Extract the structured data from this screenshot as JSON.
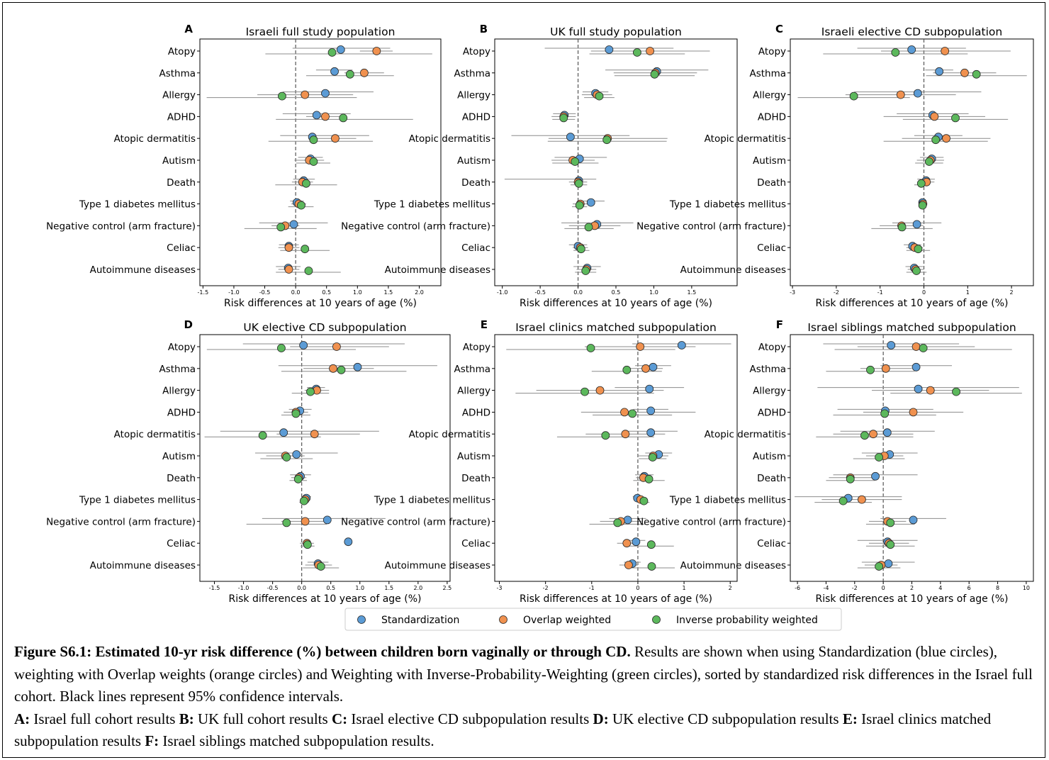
{
  "categories": [
    "Atopy",
    "Asthma",
    "Allergy",
    "ADHD",
    "Atopic dermatitis",
    "Autism",
    "Death",
    "Type 1 diabetes mellitus",
    "Negative control (arm fracture)",
    "Celiac",
    "Autoimmune diseases"
  ],
  "colors": {
    "Standardization": "#5b9bd5",
    "Overlap weighted": "#f0914f",
    "Inverse probability weighted": "#5cb85c",
    "ci_line": "#8c8c8c",
    "ref_line": "#555555"
  },
  "chart_data": [
    {
      "type": "scatter",
      "letter": "A",
      "title": "Israeli full study population",
      "xlabel": "Risk differences at 10 years of age (%)",
      "xlim": [
        -1.55,
        2.35
      ],
      "xticks": [
        "-1.5",
        "-1.0",
        "-0.5",
        "0.0",
        "0.5",
        "1.0",
        "1.5",
        "2.0"
      ],
      "xtick_values": [
        -1.5,
        -1.0,
        -0.5,
        0.0,
        0.5,
        1.0,
        1.5,
        2.0
      ],
      "series": [
        {
          "name": "Standardization",
          "values": [
            0.73,
            0.63,
            0.48,
            0.34,
            0.27,
            0.24,
            0.13,
            0.02,
            -0.03,
            -0.11,
            -0.12
          ],
          "lo": [
            -0.05,
            0.33,
            -0.21,
            -0.21,
            -0.25,
            0.04,
            -0.04,
            -0.09,
            -0.59,
            -0.27,
            -0.32
          ],
          "hi": [
            1.53,
            0.92,
            1.26,
            0.89,
            1.19,
            0.44,
            0.31,
            0.13,
            0.52,
            0.05,
            0.08
          ]
        },
        {
          "name": "Overlap weighted",
          "values": [
            1.31,
            1.11,
            0.15,
            0.48,
            0.64,
            0.22,
            0.11,
            0.05,
            -0.17,
            -0.11,
            -0.11
          ],
          "lo": [
            1.04,
            0.79,
            -0.62,
            0.17,
            0.31,
            -0.02,
            -0.06,
            -0.07,
            -0.39,
            -0.28,
            -0.28
          ],
          "hi": [
            1.57,
            1.43,
            0.93,
            0.8,
            0.98,
            0.46,
            0.28,
            0.17,
            0.06,
            0.06,
            0.06
          ]
        },
        {
          "name": "Inverse probability weighted",
          "values": [
            0.59,
            0.88,
            -0.22,
            0.77,
            0.29,
            0.29,
            0.17,
            0.09,
            -0.24,
            0.15,
            0.21
          ],
          "lo": [
            -0.49,
            0.17,
            -1.44,
            -0.32,
            -0.44,
            0.01,
            -0.33,
            -0.12,
            -0.83,
            -0.25,
            -0.32
          ],
          "hi": [
            2.21,
            1.59,
            0.99,
            1.9,
            1.25,
            0.56,
            0.67,
            0.29,
            0.34,
            0.55,
            0.73
          ]
        }
      ]
    },
    {
      "type": "scatter",
      "letter": "B",
      "title": "UK full study population",
      "xlabel": "Risk differences at 10 years of age (%)",
      "xlim": [
        -1.1,
        2.1
      ],
      "xticks": [
        "-1.0",
        "-0.5",
        "0.0",
        "0.5",
        "1.0",
        "1.5"
      ],
      "xtick_values": [
        -1.0,
        -0.5,
        0.0,
        0.5,
        1.0,
        1.5
      ],
      "series": [
        {
          "name": "Standardization",
          "values": [
            0.41,
            1.04,
            0.23,
            -0.18,
            -0.1,
            0.02,
            0.01,
            0.17,
            0.25,
            0.0,
            0.12
          ],
          "lo": [
            -0.44,
            0.36,
            0.06,
            -0.33,
            -0.88,
            -0.31,
            -0.97,
            -0.01,
            -0.22,
            -0.12,
            -0.06
          ],
          "hi": [
            1.26,
            1.72,
            0.4,
            -0.03,
            0.68,
            0.38,
            0.24,
            0.35,
            0.73,
            0.12,
            0.3
          ]
        },
        {
          "name": "Overlap weighted",
          "values": [
            0.95,
            1.02,
            0.25,
            -0.19,
            0.39,
            -0.07,
            0.0,
            0.03,
            0.22,
            0.03,
            0.11
          ],
          "lo": [
            0.17,
            0.47,
            0.05,
            -0.35,
            -0.39,
            -0.35,
            -0.12,
            -0.07,
            -0.12,
            -0.07,
            -0.02
          ],
          "hi": [
            1.74,
            1.57,
            0.45,
            -0.03,
            1.18,
            0.22,
            0.12,
            0.13,
            0.56,
            0.13,
            0.24
          ]
        },
        {
          "name": "Inverse probability weighted",
          "values": [
            0.78,
            1.01,
            0.28,
            -0.19,
            0.38,
            -0.04,
            0.01,
            0.02,
            0.14,
            0.04,
            0.1
          ],
          "lo": [
            0.15,
            0.48,
            0.08,
            -0.34,
            -0.4,
            -0.34,
            -0.1,
            -0.08,
            -0.18,
            -0.06,
            -0.04
          ],
          "hi": [
            1.41,
            1.54,
            0.48,
            -0.04,
            1.17,
            0.27,
            0.12,
            0.12,
            0.47,
            0.15,
            0.24
          ]
        }
      ]
    },
    {
      "type": "scatter",
      "letter": "C",
      "title": "Israeli elective CD subpopulation",
      "xlabel": "Risk differences at 10 years of age (%)",
      "xlim": [
        -3.05,
        2.5
      ],
      "xticks": [
        "-3",
        "-2",
        "-1",
        "0",
        "1",
        "2"
      ],
      "xtick_values": [
        -3,
        -2,
        -1,
        0,
        1,
        2
      ],
      "series": [
        {
          "name": "Standardization",
          "values": [
            -0.28,
            0.35,
            -0.14,
            0.2,
            0.33,
            0.18,
            0.05,
            -0.03,
            -0.16,
            -0.26,
            -0.22
          ],
          "lo": [
            -1.52,
            0.03,
            -1.59,
            -0.62,
            -0.22,
            -0.09,
            -0.15,
            -0.1,
            -0.72,
            -0.46,
            -0.42
          ],
          "hi": [
            0.96,
            0.67,
            1.31,
            1.02,
            0.88,
            0.45,
            0.25,
            0.04,
            0.4,
            -0.06,
            -0.02
          ]
        },
        {
          "name": "Overlap weighted",
          "values": [
            0.48,
            0.93,
            -0.53,
            0.24,
            0.51,
            0.15,
            0.06,
            -0.02,
            -0.51,
            -0.21,
            -0.19
          ],
          "lo": [
            -0.98,
            0.21,
            -1.79,
            -0.92,
            -0.5,
            -0.16,
            -0.12,
            -0.08,
            -1.01,
            -0.4,
            -0.37
          ],
          "hi": [
            1.98,
            1.65,
            0.73,
            1.4,
            1.52,
            0.46,
            0.24,
            0.04,
            -0.01,
            -0.02,
            -0.01
          ]
        },
        {
          "name": "Inverse probability weighted",
          "values": [
            -0.65,
            1.2,
            -1.6,
            0.72,
            0.27,
            0.12,
            -0.06,
            -0.03,
            -0.5,
            -0.13,
            -0.17
          ],
          "lo": [
            -2.3,
            0.05,
            -2.88,
            -0.48,
            -0.92,
            -0.2,
            -0.22,
            -0.09,
            -1.2,
            -0.4,
            -0.4
          ],
          "hi": [
            1.0,
            2.35,
            -0.32,
            1.92,
            1.46,
            0.44,
            0.1,
            0.03,
            0.2,
            0.14,
            0.06
          ]
        }
      ]
    },
    {
      "type": "scatter",
      "letter": "D",
      "title": "UK elective CD subpopulation",
      "xlabel": "Risk differences at 10 years of age (%)",
      "xlim": [
        -1.75,
        2.55
      ],
      "xticks": [
        "-1.5",
        "-1.0",
        "-0.5",
        "0.0",
        "0.5",
        "1.0",
        "1.5",
        "2.0",
        "2.5"
      ],
      "xtick_values": [
        -1.5,
        -1.0,
        -0.5,
        0.0,
        0.5,
        1.0,
        1.5,
        2.0,
        2.5
      ],
      "series": [
        {
          "name": "Standardization",
          "values": [
            0.03,
            0.96,
            0.25,
            -0.03,
            -0.31,
            -0.09,
            -0.02,
            0.08,
            0.44,
            0.8,
            0.28
          ],
          "lo": [
            -1.01,
            -0.4,
            0.09,
            -0.22,
            -1.4,
            -0.8,
            -0.2,
            0.0,
            -0.68,
            0.8,
            0.1
          ],
          "hi": [
            1.77,
            2.33,
            0.4,
            0.17,
            1.33,
            0.62,
            0.16,
            0.16,
            1.44,
            0.8,
            0.46
          ]
        },
        {
          "name": "Overlap weighted",
          "values": [
            0.6,
            0.54,
            0.26,
            -0.1,
            0.22,
            -0.28,
            -0.05,
            0.06,
            0.06,
            0.09,
            0.29
          ],
          "lo": [
            -0.2,
            0.03,
            0.05,
            -0.31,
            -0.43,
            -0.61,
            -0.18,
            -0.02,
            -0.35,
            -0.03,
            0.06
          ],
          "hi": [
            1.5,
            1.24,
            0.47,
            0.11,
            1.0,
            0.05,
            0.08,
            0.14,
            0.47,
            0.21,
            0.52
          ]
        },
        {
          "name": "Inverse probability weighted",
          "values": [
            -0.35,
            0.68,
            0.15,
            -0.1,
            -0.67,
            -0.26,
            -0.06,
            0.04,
            -0.26,
            0.1,
            0.33
          ],
          "lo": [
            -1.63,
            -0.35,
            -0.17,
            -0.35,
            -1.67,
            -0.71,
            -0.21,
            -0.04,
            -0.95,
            -0.02,
            0.02
          ],
          "hi": [
            0.93,
            1.8,
            0.47,
            0.15,
            0.33,
            0.19,
            0.09,
            0.12,
            0.43,
            0.22,
            0.64
          ]
        }
      ]
    },
    {
      "type": "scatter",
      "letter": "E",
      "title": "Israel clinics matched subpopulation",
      "xlabel": "Risk differences at 10 years of age (%)",
      "xlim": [
        -3.1,
        2.15
      ],
      "xticks": [
        "-3",
        "-2",
        "-1",
        "0",
        "1",
        "2"
      ],
      "xtick_values": [
        -3,
        -2,
        -1,
        0,
        1,
        2
      ],
      "series": [
        {
          "name": "Standardization",
          "values": [
            0.95,
            0.33,
            0.25,
            0.28,
            0.28,
            0.45,
            0.14,
            -0.01,
            -0.22,
            -0.04,
            -0.12
          ],
          "lo": [
            -0.12,
            -0.06,
            -0.5,
            -0.1,
            -0.3,
            0.16,
            -0.06,
            -0.11,
            -0.62,
            -0.24,
            -0.3
          ],
          "hi": [
            2.02,
            0.72,
            1.0,
            0.66,
            0.86,
            0.74,
            0.34,
            0.09,
            0.18,
            0.16,
            0.06
          ]
        },
        {
          "name": "Overlap weighted",
          "values": [
            0.05,
            0.17,
            -0.82,
            -0.29,
            -0.27,
            0.33,
            0.12,
            0.06,
            -0.37,
            -0.24,
            -0.2
          ],
          "lo": [
            -1.15,
            -0.2,
            -2.2,
            -1.23,
            -1.13,
            0.0,
            -0.04,
            -0.05,
            -0.82,
            -0.45,
            -0.4
          ],
          "hi": [
            1.25,
            0.54,
            0.56,
            1.25,
            0.59,
            0.66,
            0.28,
            0.17,
            0.08,
            -0.03,
            0.0
          ]
        },
        {
          "name": "Inverse probability weighted",
          "values": [
            -1.02,
            -0.24,
            -1.15,
            -0.12,
            -0.7,
            0.32,
            0.24,
            0.13,
            -0.44,
            0.29,
            0.3
          ],
          "lo": [
            -2.85,
            -1.0,
            -2.65,
            -0.98,
            -1.75,
            0.02,
            -0.1,
            0.01,
            -1.05,
            -0.2,
            -0.2
          ],
          "hi": [
            0.81,
            0.52,
            0.35,
            0.74,
            0.35,
            0.62,
            0.58,
            0.25,
            0.17,
            0.78,
            0.8
          ]
        }
      ]
    },
    {
      "type": "scatter",
      "letter": "F",
      "title": "Israel siblings matched subpopulation",
      "xlabel": "Risk differences at 10 years of age (%)",
      "xlim": [
        -6.5,
        10.5
      ],
      "xticks": [
        "-6",
        "-4",
        "-2",
        "0",
        "2",
        "4",
        "6",
        "8",
        "10"
      ],
      "xtick_values": [
        -6,
        -4,
        -2,
        0,
        2,
        4,
        6,
        8,
        10
      ],
      "series": [
        {
          "name": "Standardization",
          "values": [
            0.55,
            2.3,
            2.45,
            0.14,
            0.28,
            0.45,
            -0.55,
            -2.45,
            2.1,
            0.3,
            0.36
          ],
          "lo": [
            -4.2,
            -0.2,
            -4.6,
            -3.2,
            -3.0,
            -1.5,
            -3.5,
            -6.2,
            -0.2,
            -1.8,
            -1.5
          ],
          "hi": [
            5.3,
            4.8,
            9.5,
            3.5,
            3.6,
            2.4,
            2.4,
            1.3,
            4.4,
            2.4,
            2.2
          ]
        },
        {
          "name": "Overlap weighted",
          "values": [
            2.3,
            0.18,
            3.3,
            2.1,
            -0.7,
            0.08,
            -2.3,
            -1.5,
            0.3,
            0.4,
            -0.14
          ],
          "lo": [
            -1.8,
            -1.6,
            -0.8,
            -1.4,
            -3.5,
            -1.2,
            -3.8,
            -4.3,
            -1.0,
            -1.0,
            -1.3
          ],
          "hi": [
            6.4,
            2.0,
            7.4,
            5.6,
            2.1,
            1.4,
            -0.8,
            1.3,
            1.6,
            1.8,
            1.0
          ]
        },
        {
          "name": "Inverse probability weighted",
          "values": [
            2.8,
            -0.9,
            5.1,
            0.1,
            -1.3,
            -0.3,
            -2.3,
            -2.8,
            0.5,
            0.5,
            -0.3
          ],
          "lo": [
            -3.4,
            -4.0,
            0.5,
            -3.5,
            -4.7,
            -2.1,
            -4.0,
            -4.8,
            -1.2,
            -1.2,
            -1.8
          ],
          "hi": [
            9.0,
            2.2,
            9.7,
            3.7,
            2.1,
            1.5,
            -0.6,
            -0.8,
            2.2,
            2.2,
            1.2
          ]
        }
      ]
    }
  ],
  "legend": {
    "items": [
      "Standardization",
      "Overlap weighted",
      "Inverse probability weighted"
    ]
  },
  "caption": {
    "bold_title": "Figure S6.1: Estimated 10-yr risk difference (%) between children born vaginally or through CD.",
    "text1": " Results are shown when using Standardization (blue circles), weighting with Overlap weights (orange circles) and Weighting with Inverse-Probability-Weighting (green circles), sorted by standardized risk differences in the Israel full cohort. Black lines represent 95% confidence intervals.",
    "a_label": "A:",
    "a_text": " Israel full cohort results ",
    "b_label": "B:",
    "b_text": " UK full cohort results ",
    "c_label": "C:",
    "c_text": " Israel elective CD subpopulation results ",
    "d_label": "D:",
    "d_text": " UK elective CD subpopulation results  ",
    "e_label": "E:",
    "e_text": " Israel clinics matched subpopulation results ",
    "f_label": "F:",
    "f_text": " Israel siblings matched subpopulation results."
  }
}
